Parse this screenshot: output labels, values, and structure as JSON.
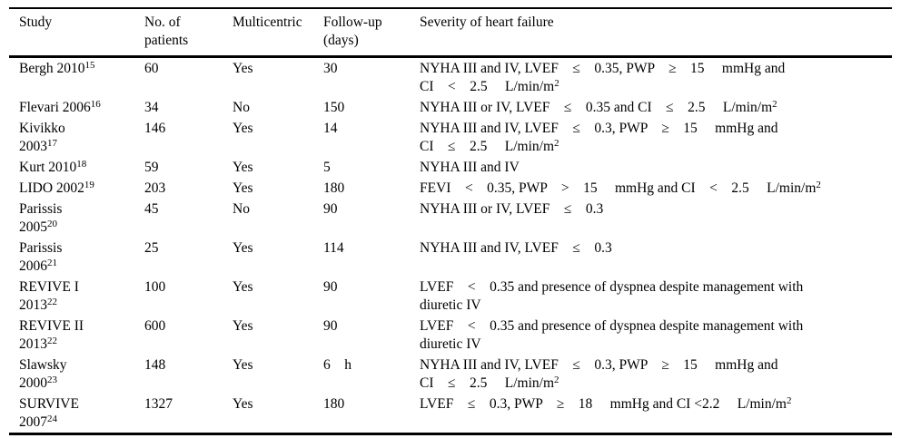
{
  "table": {
    "columns": [
      {
        "label": "Study"
      },
      {
        "label": "No. of\npatients"
      },
      {
        "label": "Multicentric"
      },
      {
        "label": "Follow-up\n(days)"
      },
      {
        "label": "Severity of heart failure"
      }
    ],
    "rows": [
      {
        "study": "Bergh 2010",
        "ref": "15",
        "patients": "60",
        "multicentric": "Yes",
        "followup": "30",
        "severity": "NYHA III and IV, LVEF    ≤    0.35, PWP    ≥    15     mmHg and\nCI    <    2.5     L/min/m^{2}"
      },
      {
        "study": "Flevari 2006",
        "ref": "16",
        "patients": "34",
        "multicentric": "No",
        "followup": "150",
        "severity": "NYHA III or IV, LVEF    ≤    0.35 and CI    ≤    2.5     L/min/m^{2}"
      },
      {
        "study": "Kivikko\n2003",
        "ref": "17",
        "patients": "146",
        "multicentric": "Yes",
        "followup": "14",
        "severity": "NYHA III and IV, LVEF    ≤    0.3, PWP    ≥    15     mmHg and\nCI    ≤    2.5     L/min/m^{2}"
      },
      {
        "study": "Kurt 2010",
        "ref": "18",
        "patients": "59",
        "multicentric": "Yes",
        "followup": "5",
        "severity": "NYHA III and IV"
      },
      {
        "study": "LIDO 2002",
        "ref": "19",
        "patients": "203",
        "multicentric": "Yes",
        "followup": "180",
        "severity": "FEVI    <    0.35, PWP    >    15     mmHg and CI    <    2.5     L/min/m^{2}"
      },
      {
        "study": "Parissis\n2005",
        "ref": "20",
        "patients": "45",
        "multicentric": "No",
        "followup": "90",
        "severity": "NYHA III or IV, LVEF    ≤    0.3"
      },
      {
        "study": "Parissis\n2006",
        "ref": "21",
        "patients": "25",
        "multicentric": "Yes",
        "followup": "114",
        "severity": "NYHA III and IV, LVEF    ≤    0.3"
      },
      {
        "study": "REVIVE I\n2013",
        "ref": "22",
        "patients": "100",
        "multicentric": "Yes",
        "followup": "90",
        "severity": "LVEF    <    0.35 and presence of dyspnea despite management with\ndiuretic IV"
      },
      {
        "study": "REVIVE II\n2013",
        "ref": "22",
        "patients": "600",
        "multicentric": "Yes",
        "followup": "90",
        "severity": "LVEF    <    0.35 and presence of dyspnea despite management with\ndiuretic IV"
      },
      {
        "study": "Slawsky\n2000",
        "ref": "23",
        "patients": "148",
        "multicentric": "Yes",
        "followup": "6    h",
        "severity": "NYHA III and IV, LVEF    ≤    0.3, PWP    ≥    15     mmHg and\nCI    ≤    2.5     L/min/m^{2}"
      },
      {
        "study": "SURVIVE\n2007",
        "ref": "24",
        "patients": "1327",
        "multicentric": "Yes",
        "followup": "180",
        "severity": "LVEF    ≤    0.3, PWP    ≥    18     mmHg and CI <2.2     L/min/m^{2}"
      }
    ]
  }
}
